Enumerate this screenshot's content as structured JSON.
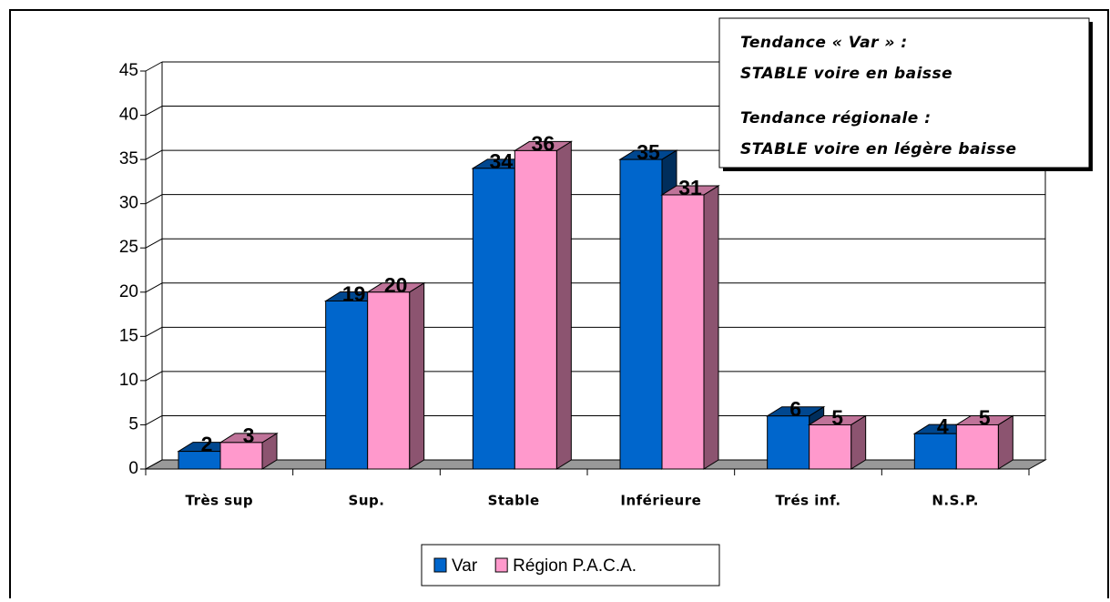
{
  "chart_data": {
    "type": "bar3d",
    "categories": [
      "Très sup",
      "Sup.",
      "Stable",
      "Inférieure",
      "Trés inf.",
      "N.S.P."
    ],
    "series": [
      {
        "name": "Var",
        "color": "#0066cc",
        "values": [
          2,
          19,
          34,
          35,
          6,
          4
        ]
      },
      {
        "name": "Région P.A.C.A.",
        "color": "#ff99cc",
        "values": [
          3,
          20,
          36,
          31,
          5,
          5
        ]
      }
    ],
    "ylim": [
      0,
      45
    ],
    "yticks": [
      0,
      5,
      10,
      15,
      20,
      25,
      30,
      35,
      40,
      45
    ],
    "grid": true,
    "legend": "bottom",
    "annotations": [
      "Tendance « Var » :",
      "STABLE voire en baisse",
      "Tendance régionale :",
      "STABLE voire en  légère baisse"
    ]
  }
}
